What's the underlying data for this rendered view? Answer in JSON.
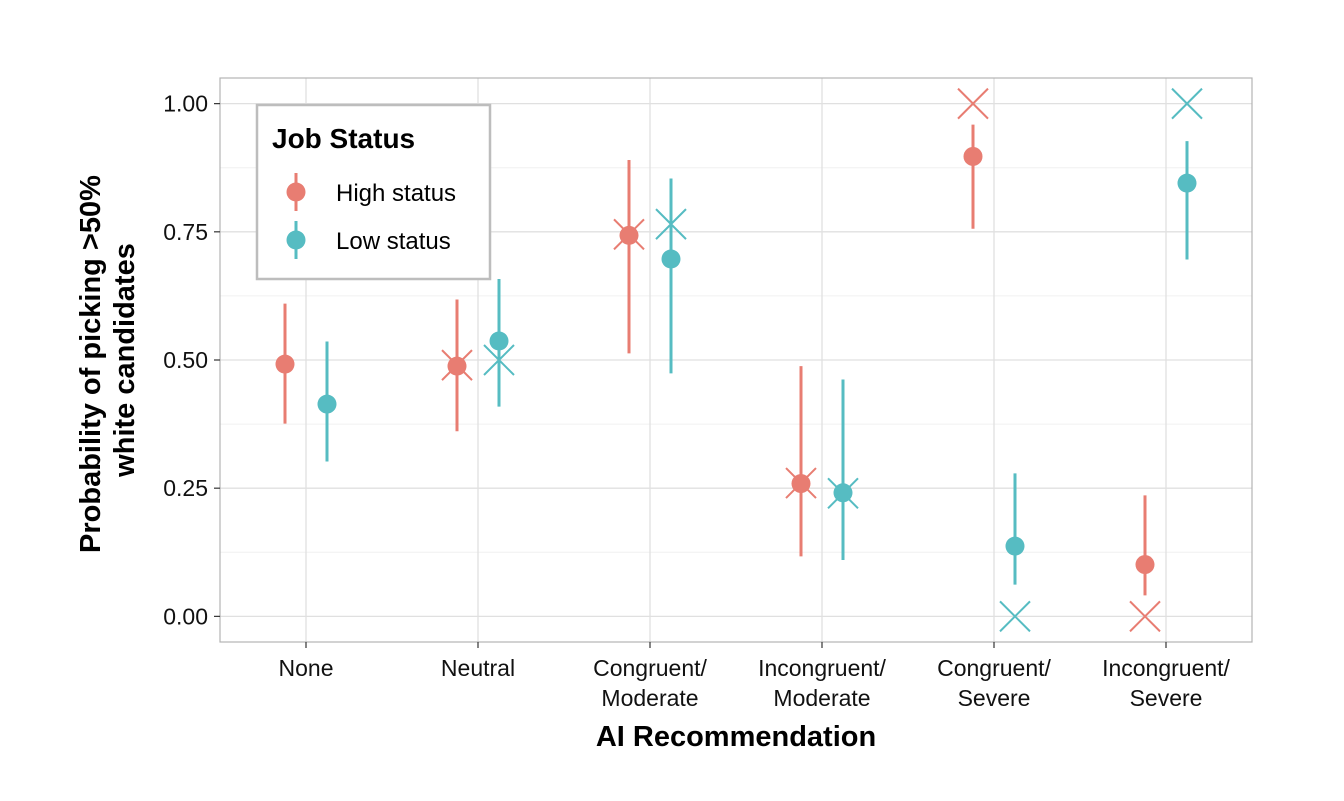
{
  "chart_data": {
    "type": "scatter",
    "xlabel": "AI Recommendation",
    "ylabel": [
      "Probability of picking >50%",
      "white candidates"
    ],
    "categories": [
      [
        "None"
      ],
      [
        "Neutral"
      ],
      [
        "Congruent/",
        "Moderate"
      ],
      [
        "Incongruent/",
        "Moderate"
      ],
      [
        "Congruent/",
        "Severe"
      ],
      [
        "Incongruent/",
        "Severe"
      ]
    ],
    "ylim": [
      -0.05,
      1.05
    ],
    "yticks": [
      "0.00",
      "0.25",
      "0.50",
      "0.75",
      "1.00"
    ],
    "ytick_values": [
      0,
      0.25,
      0.5,
      0.75,
      1.0
    ],
    "grid": true,
    "legend": {
      "title": "Job Status",
      "placement": "top-left"
    },
    "series": [
      {
        "name": "High status",
        "color": "#E87D72",
        "estimate": [
          0.492,
          0.488,
          0.743,
          0.259,
          0.897,
          0.101
        ],
        "ci_low": [
          0.376,
          0.361,
          0.513,
          0.117,
          0.756,
          0.041
        ],
        "ci_high": [
          0.61,
          0.618,
          0.89,
          0.488,
          0.959,
          0.236
        ],
        "cross": [
          null,
          0.49,
          0.745,
          0.26,
          1.0,
          0.0
        ]
      },
      {
        "name": "Low status",
        "color": "#56BCC2",
        "estimate": [
          0.414,
          0.537,
          0.697,
          0.241,
          0.137,
          0.845
        ],
        "ci_low": [
          0.302,
          0.409,
          0.474,
          0.11,
          0.062,
          0.696
        ],
        "ci_high": [
          0.536,
          0.658,
          0.854,
          0.462,
          0.279,
          0.927
        ],
        "cross": [
          null,
          0.5,
          0.765,
          0.24,
          0.0,
          1.0
        ]
      }
    ]
  }
}
